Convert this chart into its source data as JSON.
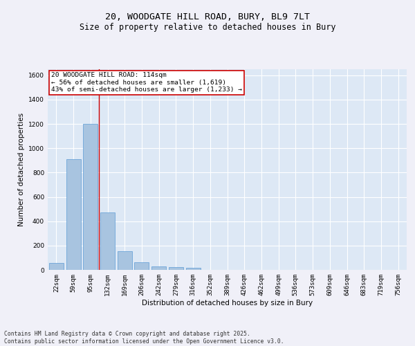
{
  "title_line1": "20, WOODGATE HILL ROAD, BURY, BL9 7LT",
  "title_line2": "Size of property relative to detached houses in Bury",
  "xlabel": "Distribution of detached houses by size in Bury",
  "ylabel": "Number of detached properties",
  "categories": [
    "22sqm",
    "59sqm",
    "95sqm",
    "132sqm",
    "169sqm",
    "206sqm",
    "242sqm",
    "279sqm",
    "316sqm",
    "352sqm",
    "389sqm",
    "426sqm",
    "462sqm",
    "499sqm",
    "536sqm",
    "573sqm",
    "609sqm",
    "646sqm",
    "683sqm",
    "719sqm",
    "756sqm"
  ],
  "values": [
    55,
    910,
    1200,
    475,
    155,
    60,
    30,
    20,
    15,
    0,
    0,
    0,
    0,
    0,
    0,
    0,
    0,
    0,
    0,
    0,
    0
  ],
  "bar_color": "#a8c4e0",
  "bar_edge_color": "#5b9bd5",
  "background_color": "#dde8f5",
  "grid_color": "#ffffff",
  "fig_background": "#f0f0f8",
  "annotation_text": "20 WOODGATE HILL ROAD: 114sqm\n← 56% of detached houses are smaller (1,619)\n43% of semi-detached houses are larger (1,233) →",
  "annotation_box_color": "#ffffff",
  "annotation_box_edge": "#cc0000",
  "vline_color": "#cc0000",
  "vline_position": 2.5,
  "ylim": [
    0,
    1650
  ],
  "yticks": [
    0,
    200,
    400,
    600,
    800,
    1000,
    1200,
    1400,
    1600
  ],
  "footnote": "Contains HM Land Registry data © Crown copyright and database right 2025.\nContains public sector information licensed under the Open Government Licence v3.0.",
  "title_fontsize": 9.5,
  "subtitle_fontsize": 8.5,
  "axis_label_fontsize": 7.5,
  "tick_fontsize": 6.5,
  "annotation_fontsize": 6.8,
  "footnote_fontsize": 5.8
}
